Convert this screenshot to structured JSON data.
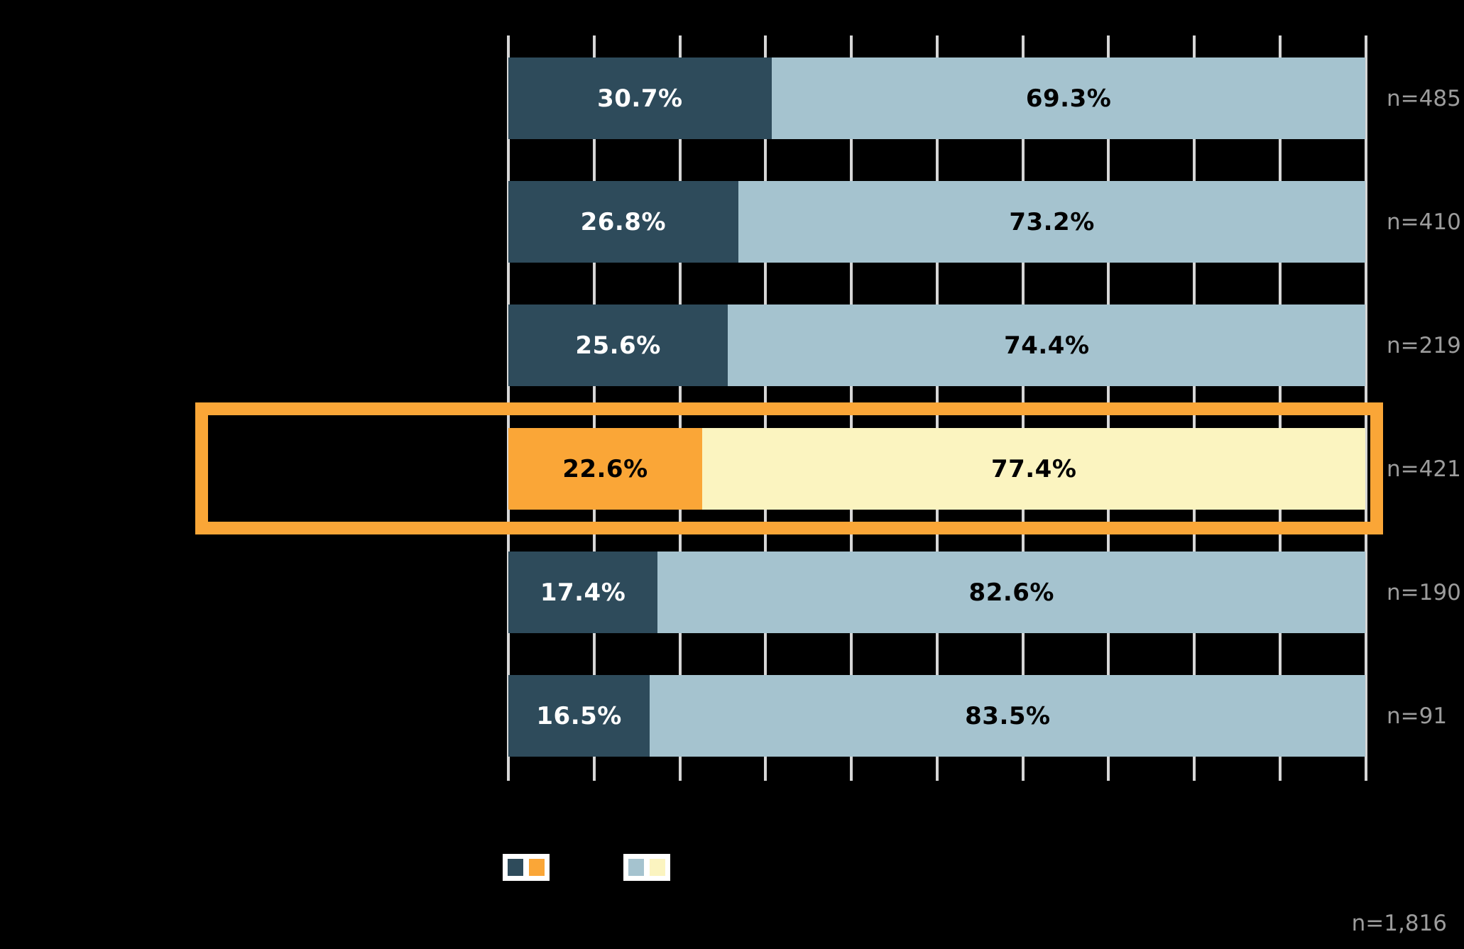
{
  "chart_data": {
    "type": "bar",
    "orientation": "horizontal",
    "stacked": true,
    "xlim": [
      0,
      100
    ],
    "gridline_step_pct": 10,
    "grid": true,
    "rows": [
      {
        "value1": 30.7,
        "value2": 69.3,
        "label1": "30.7%",
        "label2": "69.3%",
        "n": "n=485",
        "highlighted": false
      },
      {
        "value1": 26.8,
        "value2": 73.2,
        "label1": "26.8%",
        "label2": "73.2%",
        "n": "n=410",
        "highlighted": false
      },
      {
        "value1": 25.6,
        "value2": 74.4,
        "label1": "25.6%",
        "label2": "74.4%",
        "n": "n=219",
        "highlighted": false
      },
      {
        "value1": 22.6,
        "value2": 77.4,
        "label1": "22.6%",
        "label2": "77.4%",
        "n": "n=421",
        "highlighted": true
      },
      {
        "value1": 17.4,
        "value2": 82.6,
        "label1": "17.4%",
        "label2": "82.6%",
        "n": "n=190",
        "highlighted": false
      },
      {
        "value1": 16.5,
        "value2": 83.5,
        "label1": "16.5%",
        "label2": "83.5%",
        "n": "n=91",
        "highlighted": false
      }
    ],
    "total_label": "n=1,816"
  },
  "colors": {
    "background": "#000000",
    "segment1": "#2E4B5B",
    "segment2": "#A5C3CF",
    "segment1_highlight": "#FAA637",
    "segment2_highlight": "#FBF4C0",
    "highlight_border": "#FAA637",
    "gridline": "#D6D6D6",
    "n_label": "#9C9C9C",
    "label_on_dark": "#FFFFFF",
    "label_on_light": "#000000"
  },
  "legend": {
    "groups": [
      {
        "swatches": [
          "#2E4B5B",
          "#FAA637"
        ]
      },
      {
        "swatches": [
          "#A5C3CF",
          "#FBF4C0"
        ]
      }
    ]
  }
}
